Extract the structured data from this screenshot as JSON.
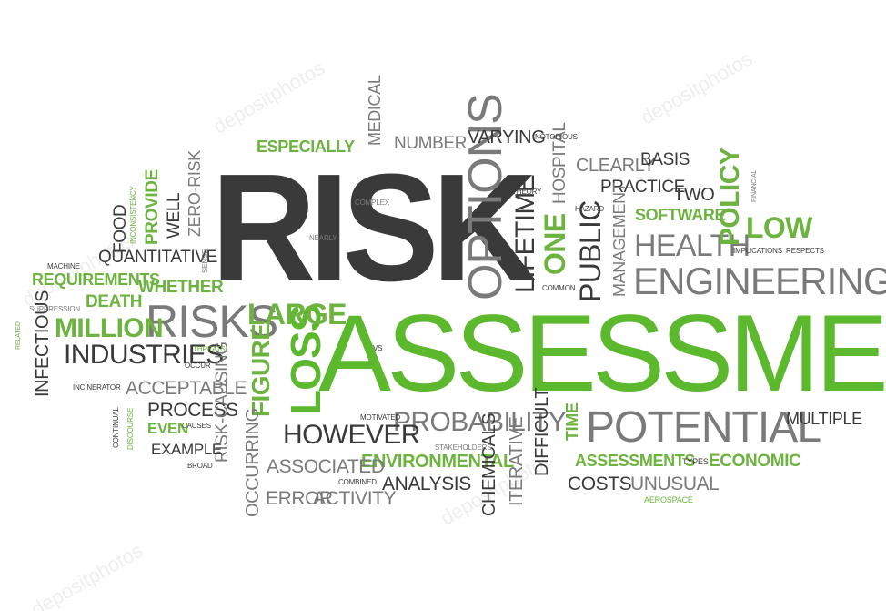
{
  "watermark": "depositphotos",
  "words": {
    "risk": "RISK",
    "assessment": "ASSESSMENT",
    "potential": "POTENTIAL",
    "engineering": "ENGINEERING",
    "options": "OPTIONS",
    "risks": "RISKS",
    "loss": "LOSS",
    "probability": "PROBABILITY",
    "however": "HOWEVER",
    "industries": "INDUSTRIES",
    "million": "MILLION",
    "large": "LARGE",
    "health": "HEALTH",
    "public": "PUBLIC",
    "one": "ONE",
    "lifetime": "LIFETIME",
    "policy": "POLICY",
    "low": "LOW",
    "environmental": "ENVIRONMENTAL",
    "associated": "ASSOCIATED",
    "acceptable": "ACCEPTABLE",
    "process": "PROCESS",
    "quantitative": "QUANTITATIVE",
    "requirements": "REQUIREMENTS",
    "whether": "WHETHER",
    "death": "DEATH",
    "figure": "FIGURE",
    "risk_causing": "RISK-CAUSING",
    "occurring": "OCCURRING",
    "error": "ERROR",
    "activity": "ACTIVITY",
    "analysis": "ANALYSIS",
    "chemicals": "CHEMICALS",
    "iterative": "ITERATIVE",
    "difficult": "DIFFICULT",
    "time": "TIME",
    "assessments": "ASSESSMENTS",
    "economic": "ECONOMIC",
    "costs": "COSTS",
    "unusual": "UNUSUAL",
    "multiple": "MULTIPLE",
    "aerospace": "AEROSPACE",
    "types": "TYPES",
    "stakeholders": "STAKEHOLDERS",
    "combined": "COMBINED",
    "motivated": "MOTIVATED",
    "vs": "VS",
    "example": "EXAMPLE",
    "broad": "BROAD",
    "even": "EVEN",
    "causes": "CAUSES",
    "discourse": "DISCOURSE",
    "continual": "CONTINUAL",
    "incinerator": "INCINERATOR",
    "infectious": "INFECTIOUS",
    "related": "RELATED",
    "suppression": "SUPPRESSION",
    "machine": "MACHINE",
    "food": "FOOD",
    "inconsistency": "INCONSISTENCY",
    "provide": "PROVIDE",
    "well": "WELL",
    "zero_risk": "ZERO-RISK",
    "sense": "SENSE",
    "threats": "THREATS",
    "occur": "OCCUR",
    "especially": "ESPECIALLY",
    "medical": "MEDICAL",
    "number": "NUMBER",
    "varying": "VARYING",
    "notorious": "NOTORIOUS",
    "complex": "COMPLEX",
    "nearly": "NEARLY",
    "theory": "THEORY",
    "intelligent": "INTELLIGENT",
    "hospital": "HOSPITAL",
    "hazard": "HAZARD",
    "common": "COMMON",
    "management": "MANAGEMENT",
    "clearly": "CLEARLY",
    "basis": "BASIS",
    "practice": "PRACTICE",
    "two": "TWO",
    "software": "SOFTWARE",
    "financial": "FINANCIAL",
    "implications": "IMPLICATIONS",
    "respects": "RESPECTS"
  }
}
